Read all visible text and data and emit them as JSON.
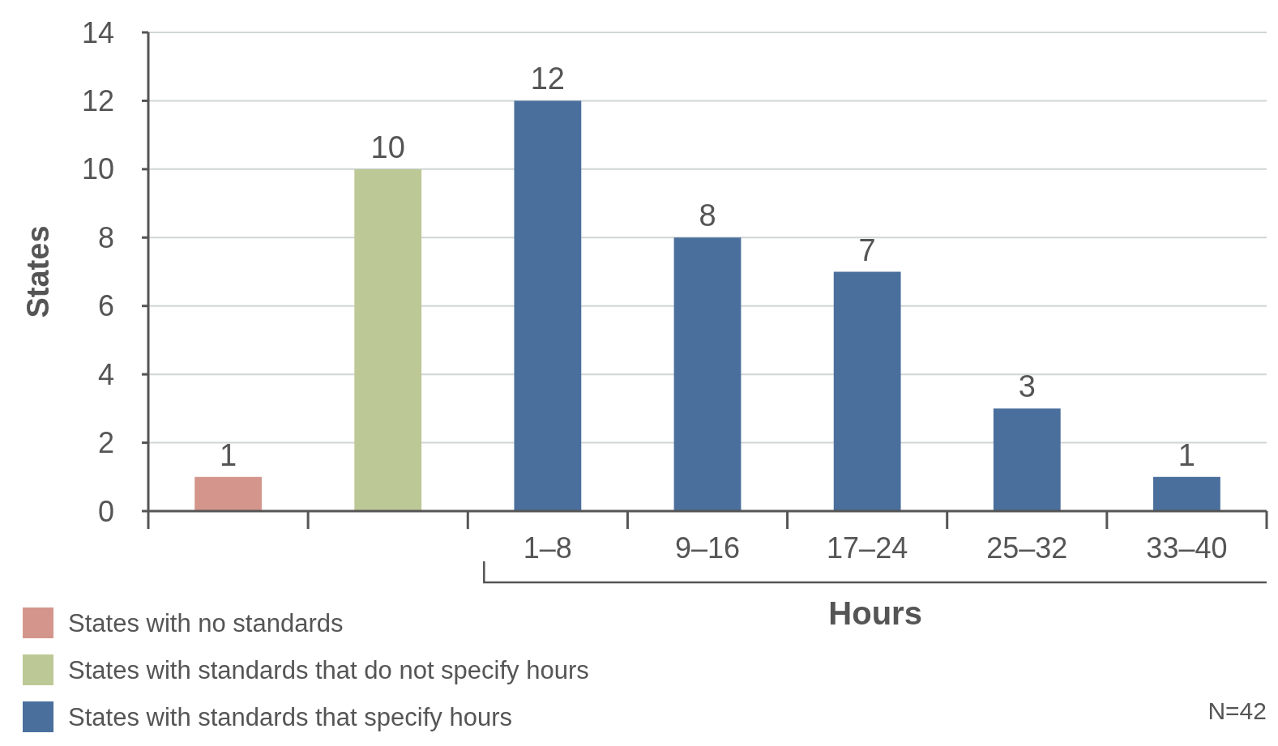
{
  "chart_data": {
    "type": "bar",
    "categories": [
      null,
      null,
      "1–8",
      "9–16",
      "17–24",
      "25–32",
      "33–40"
    ],
    "series": [
      {
        "name": "States with no standards",
        "color": "#d4968c",
        "values": [
          1,
          null,
          null,
          null,
          null,
          null,
          null
        ]
      },
      {
        "name": "States with standards that do not specify hours",
        "color": "#bcc896",
        "values": [
          null,
          10,
          null,
          null,
          null,
          null,
          null
        ]
      },
      {
        "name": "States with standards that specify hours",
        "color": "#4a6f9c",
        "values": [
          null,
          null,
          12,
          8,
          7,
          3,
          1
        ]
      }
    ],
    "xlabel": "Hours",
    "ylabel": "States",
    "ylim": [
      0,
      14
    ],
    "yticks": [
      0,
      2,
      4,
      6,
      8,
      10,
      12,
      14
    ],
    "grid": "y",
    "data_labels": true,
    "legend": "bottom left",
    "annotations": [
      "N=42"
    ]
  }
}
